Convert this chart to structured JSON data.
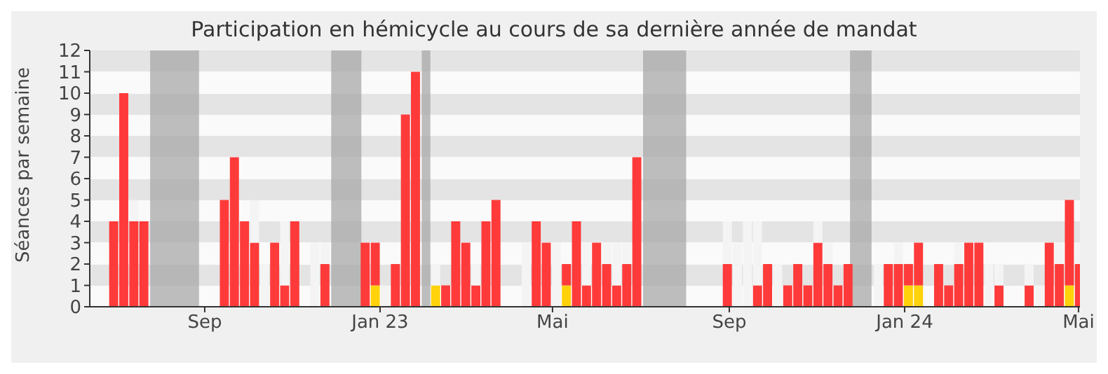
{
  "chart_data": {
    "type": "bar",
    "title": "Participation en hémicycle au cours de sa dernière année de mandat",
    "ylabel": "Séances par semaine",
    "x": [
      "2022-06-30",
      "2022-07-07",
      "2022-07-14",
      "2022-07-21",
      "2022-07-28",
      "2022-08-04",
      "2022-08-11",
      "2022-08-18",
      "2022-08-25",
      "2022-09-01",
      "2022-09-08",
      "2022-09-15",
      "2022-09-22",
      "2022-09-29",
      "2022-10-06",
      "2022-10-13",
      "2022-10-20",
      "2022-10-27",
      "2022-11-03",
      "2022-11-10",
      "2022-11-17",
      "2022-11-24",
      "2022-12-01",
      "2022-12-08",
      "2022-12-15",
      "2022-12-22",
      "2022-12-29",
      "2023-01-05",
      "2023-01-12",
      "2023-01-19",
      "2023-01-26",
      "2023-02-02",
      "2023-02-09",
      "2023-02-16",
      "2023-02-23",
      "2023-03-02",
      "2023-03-09",
      "2023-03-16",
      "2023-03-23",
      "2023-03-30",
      "2023-04-06",
      "2023-04-13",
      "2023-04-20",
      "2023-04-27",
      "2023-05-04",
      "2023-05-11",
      "2023-05-18",
      "2023-05-25",
      "2023-06-01",
      "2023-06-08",
      "2023-06-15",
      "2023-06-22",
      "2023-06-29",
      "2023-07-06",
      "2023-07-13",
      "2023-07-20",
      "2023-07-27",
      "2023-08-03",
      "2023-08-10",
      "2023-08-17",
      "2023-08-24",
      "2023-08-31",
      "2023-09-07",
      "2023-09-14",
      "2023-09-21",
      "2023-09-28",
      "2023-10-05",
      "2023-10-12",
      "2023-10-19",
      "2023-10-26",
      "2023-11-02",
      "2023-11-09",
      "2023-11-16",
      "2023-11-23",
      "2023-11-30",
      "2023-12-07",
      "2023-12-14",
      "2023-12-21",
      "2023-12-28",
      "2024-01-04",
      "2024-01-11",
      "2024-01-18",
      "2024-01-25",
      "2024-02-01",
      "2024-02-08",
      "2024-02-15",
      "2024-02-22",
      "2024-02-29",
      "2024-03-07",
      "2024-03-14",
      "2024-03-21",
      "2024-03-28",
      "2024-04-04",
      "2024-04-11",
      "2024-04-18",
      "2024-04-25",
      "2024-05-02"
    ],
    "stacked": true,
    "series": [
      {
        "color": "#ffd20a",
        "values": [
          0,
          0,
          0,
          0,
          0,
          0,
          0,
          0,
          0,
          0,
          0,
          0,
          0,
          0,
          0,
          0,
          0,
          0,
          0,
          0,
          0,
          0,
          0,
          0,
          0,
          0,
          1,
          0,
          0,
          0,
          0,
          0,
          1,
          0,
          0,
          0,
          0,
          0,
          0,
          0,
          0,
          0,
          0,
          0,
          0,
          1,
          0,
          0,
          0,
          0,
          0,
          0,
          0,
          0,
          0,
          0,
          0,
          0,
          0,
          0,
          0,
          0,
          0,
          0,
          0,
          0,
          0,
          0,
          0,
          0,
          0,
          0,
          0,
          0,
          0,
          0,
          0,
          0,
          0,
          1,
          1,
          0,
          0,
          0,
          0,
          0,
          0,
          0,
          0,
          0,
          0,
          0,
          0,
          0,
          0,
          1,
          0
        ]
      },
      {
        "color": "#ff3a3a",
        "values": [
          4,
          10,
          4,
          4,
          0,
          0,
          0,
          0,
          0,
          0,
          0,
          5,
          7,
          4,
          3,
          0,
          3,
          1,
          4,
          0,
          0,
          2,
          0,
          0,
          0,
          3,
          2,
          0,
          2,
          9,
          11,
          0,
          0,
          1,
          4,
          3,
          1,
          4,
          5,
          0,
          0,
          0,
          4,
          3,
          0,
          1,
          4,
          1,
          3,
          2,
          1,
          2,
          7,
          0,
          0,
          0,
          0,
          0,
          0,
          0,
          0,
          2,
          0,
          0,
          1,
          2,
          0,
          1,
          2,
          1,
          3,
          2,
          1,
          2,
          0,
          0,
          0,
          2,
          2,
          1,
          2,
          0,
          2,
          1,
          2,
          3,
          3,
          0,
          1,
          0,
          0,
          1,
          0,
          3,
          2,
          4,
          2
        ]
      },
      {
        "color": "#f4f4f4",
        "values": [
          null,
          null,
          1,
          null,
          null,
          null,
          null,
          null,
          null,
          null,
          null,
          null,
          null,
          null,
          2,
          2,
          null,
          3,
          null,
          null,
          3,
          1,
          null,
          null,
          null,
          null,
          null,
          1,
          null,
          null,
          null,
          null,
          1,
          null,
          null,
          null,
          1,
          null,
          null,
          null,
          null,
          3,
          null,
          null,
          3,
          null,
          null,
          2,
          null,
          1,
          2,
          1,
          null,
          null,
          null,
          null,
          null,
          null,
          null,
          null,
          null,
          2,
          3,
          4,
          3,
          null,
          2,
          null,
          null,
          null,
          1,
          1,
          null,
          null,
          null,
          null,
          2,
          null,
          1,
          null,
          null,
          null,
          null,
          null,
          1,
          null,
          null,
          2,
          1,
          null,
          null,
          1,
          1,
          null,
          1,
          null,
          1
        ]
      }
    ],
    "bands": [
      {
        "axis": "x",
        "from": "2022-07-25",
        "to": "2022-08-28",
        "color": "#a8a8a8"
      },
      {
        "axis": "x",
        "from": "2022-11-28",
        "to": "2022-12-19",
        "color": "#a8a8a8"
      },
      {
        "axis": "x",
        "from": "2023-01-30",
        "to": "2023-02-05",
        "color": "#a8a8a8"
      },
      {
        "axis": "x",
        "from": "2023-07-03",
        "to": "2023-08-02",
        "color": "#a8a8a8"
      },
      {
        "axis": "x",
        "from": "2023-11-24",
        "to": "2023-12-09",
        "color": "#a8a8a8"
      }
    ],
    "xlim": [
      "2022-06-13",
      "2024-05-02"
    ],
    "xticks": [
      {
        "value": "2022-09-01",
        "label": "Sep"
      },
      {
        "value": "2023-01-01",
        "label": "Jan 23"
      },
      {
        "value": "2023-05-01",
        "label": "Mai"
      },
      {
        "value": "2023-09-01",
        "label": "Sep"
      },
      {
        "value": "2024-01-01",
        "label": "Jan 24"
      },
      {
        "value": "2024-05-01",
        "label": "Mai"
      }
    ],
    "ylim": [
      0,
      12
    ],
    "yticks": [
      0,
      1,
      2,
      3,
      4,
      5,
      6,
      7,
      8,
      9,
      10,
      11,
      12
    ]
  }
}
